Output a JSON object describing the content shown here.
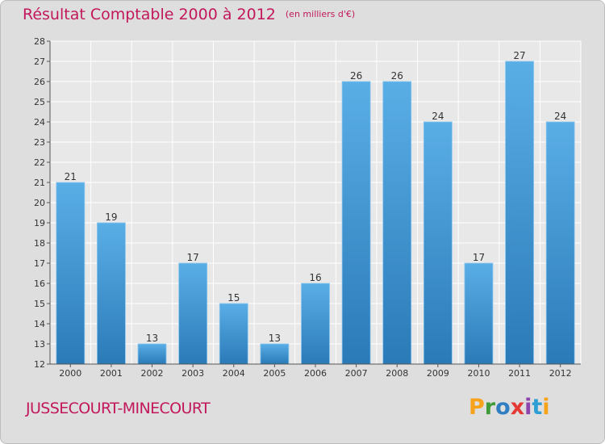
{
  "title": "Résultat Comptable 2000 à 2012",
  "unit_label": "(en milliers d'€)",
  "commune": "JUSSECOURT-MINECOURT",
  "logo": "Proxiti",
  "colors": {
    "title": "#c2185b",
    "bar_dark": "#2a7ab8",
    "bar_light": "#5aaee6",
    "background": "#dedede",
    "plot": "#e8e8e8"
  },
  "chart_data": {
    "type": "bar",
    "title": "Résultat Comptable 2000 à 2012",
    "ylabel": "en milliers d'€",
    "xlabel": "",
    "categories": [
      "2000",
      "2001",
      "2002",
      "2003",
      "2004",
      "2005",
      "2006",
      "2007",
      "2008",
      "2009",
      "2010",
      "2011",
      "2012"
    ],
    "values": [
      21,
      19,
      13,
      17,
      15,
      13,
      16,
      26,
      26,
      24,
      17,
      27,
      24
    ],
    "ylim": [
      12,
      28
    ],
    "yticks": [
      12,
      13,
      14,
      15,
      16,
      17,
      18,
      19,
      20,
      21,
      22,
      23,
      24,
      25,
      26,
      27,
      28
    ],
    "grid": true
  }
}
